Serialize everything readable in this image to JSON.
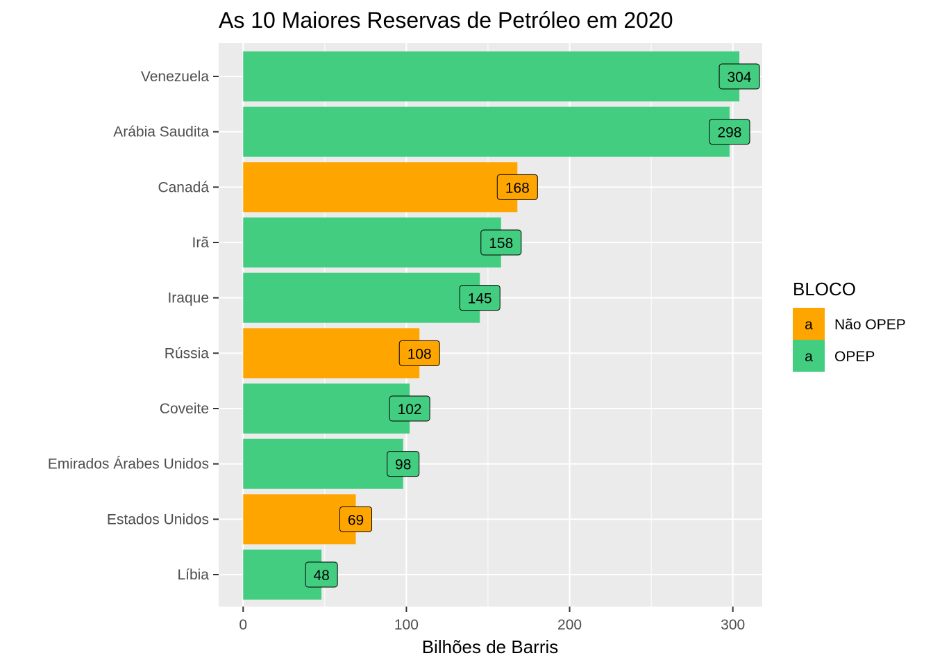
{
  "chart_data": {
    "type": "bar",
    "orientation": "horizontal",
    "title": "As 10 Maiores Reservas de Petróleo em 2020",
    "xlabel": "Bilhões de Barris",
    "ylabel": "",
    "xlim": [
      -15,
      318
    ],
    "x_ticks": [
      0,
      100,
      200,
      300
    ],
    "grid": true,
    "categories": [
      "Venezuela",
      "Arábia Saudita",
      "Canadá",
      "Irã",
      "Iraque",
      "Rússia",
      "Coveite",
      "Emirados Árabes Unidos",
      "Estados Unidos",
      "Líbia"
    ],
    "values": [
      304,
      298,
      168,
      158,
      145,
      108,
      102,
      98,
      69,
      48
    ],
    "groups": [
      "OPEP",
      "OPEP",
      "Não OPEP",
      "OPEP",
      "OPEP",
      "Não OPEP",
      "OPEP",
      "OPEP",
      "Não OPEP",
      "OPEP"
    ],
    "data_labels": [
      "304",
      "298",
      "168",
      "158",
      "145",
      "108",
      "102",
      "98",
      "69",
      "48"
    ],
    "legend": {
      "title": "BLOCO",
      "placement": "right",
      "key_glyph": "a",
      "entries": [
        {
          "name": "Não OPEP",
          "color": "#FFA500"
        },
        {
          "name": "OPEP",
          "color": "#43CD80"
        }
      ]
    },
    "colors": {
      "Não OPEP": "#FFA500",
      "OPEP": "#43CD80",
      "panel_background": "#EBEBEB",
      "grid": "#FFFFFF"
    }
  }
}
